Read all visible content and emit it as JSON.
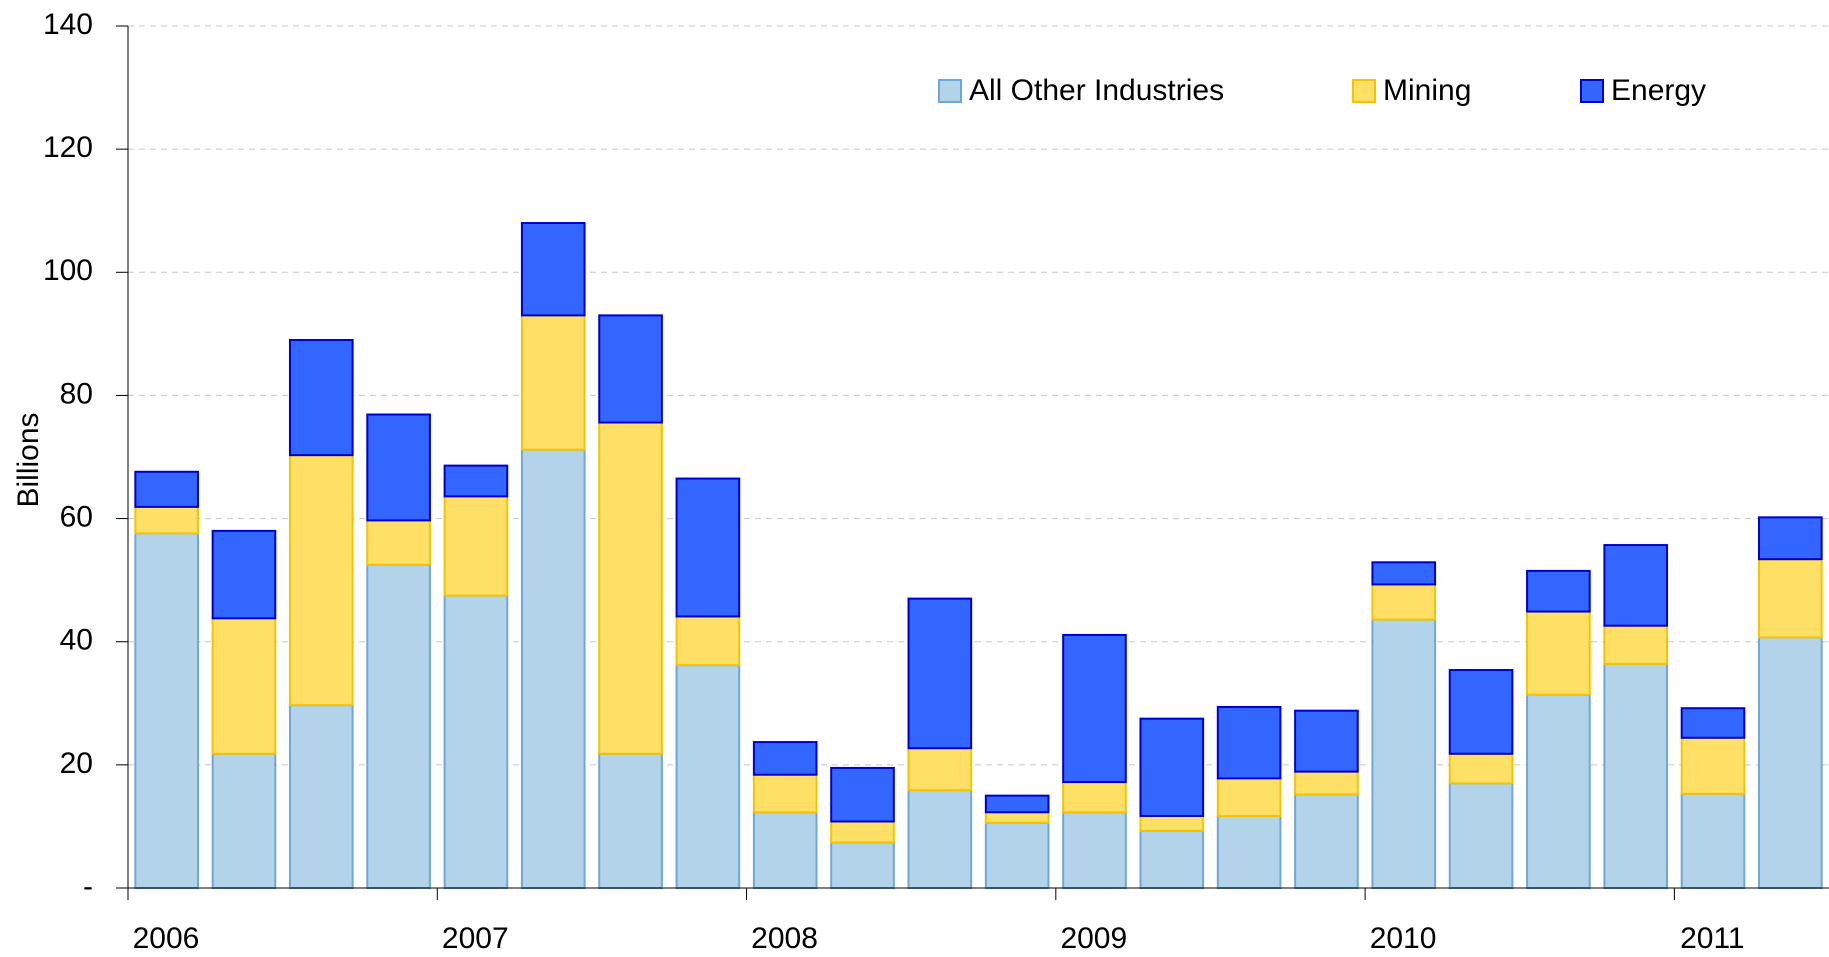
{
  "chart_data": {
    "type": "stacked_bar",
    "y_label": "Billions",
    "categories": [
      "2006",
      null,
      null,
      null,
      "2007",
      null,
      null,
      null,
      "2008",
      null,
      null,
      null,
      "2009",
      null,
      null,
      null,
      "2010",
      null,
      null,
      null,
      "2011",
      null
    ],
    "series": [
      {
        "name": "All Other Industries",
        "color": "#b3d3ea",
        "stroke": "#6fa8d6",
        "values": [
          57.6,
          21.8,
          29.7,
          52.5,
          47.5,
          71.2,
          21.8,
          36.2,
          12.3,
          7.4,
          15.9,
          10.6,
          12.3,
          9.3,
          11.7,
          15.2,
          43.6,
          17.0,
          31.4,
          36.4,
          15.3,
          40.7
        ]
      },
      {
        "name": "Mining",
        "color": "#ffe066",
        "stroke": "#f5c400",
        "values": [
          4.3,
          22.0,
          40.6,
          7.2,
          16.1,
          21.8,
          53.8,
          7.9,
          6.1,
          3.4,
          6.8,
          1.7,
          4.9,
          2.4,
          6.1,
          3.7,
          5.7,
          4.8,
          13.5,
          6.2,
          9.1,
          12.7
        ]
      },
      {
        "name": "Energy",
        "color": "#3366ff",
        "stroke": "#0000cc",
        "values": [
          5.7,
          14.2,
          18.7,
          17.2,
          5.0,
          15.0,
          17.4,
          22.4,
          5.3,
          8.7,
          24.3,
          2.7,
          23.9,
          15.8,
          11.6,
          9.9,
          3.6,
          13.6,
          6.6,
          13.1,
          4.8,
          6.8
        ]
      }
    ],
    "ylim": [
      0,
      140
    ],
    "yticks": [
      {
        "value": 0,
        "label": "-"
      },
      20,
      40,
      60,
      80,
      100,
      120,
      140
    ],
    "grid": true,
    "legend": "top-right"
  }
}
